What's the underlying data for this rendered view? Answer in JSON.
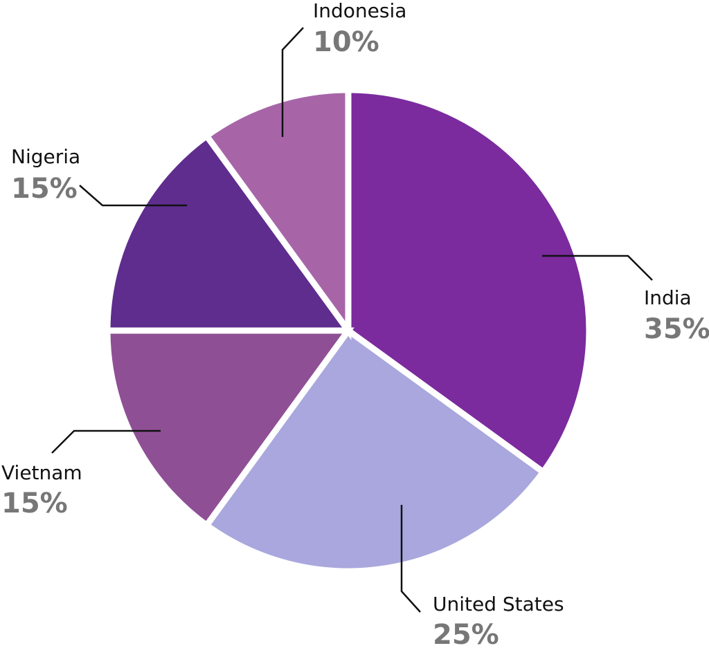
{
  "chart_data": {
    "type": "pie",
    "categories": [
      "India",
      "United States",
      "Vietnam",
      "Nigeria",
      "Indonesia"
    ],
    "values": [
      35,
      25,
      15,
      15,
      10
    ],
    "value_labels": [
      "35%",
      "25%",
      "15%",
      "15%",
      "10%"
    ],
    "colors": [
      "#7b2b9e",
      "#a9a7dd",
      "#8f4f95",
      "#5e2d8e",
      "#a765a8"
    ]
  }
}
